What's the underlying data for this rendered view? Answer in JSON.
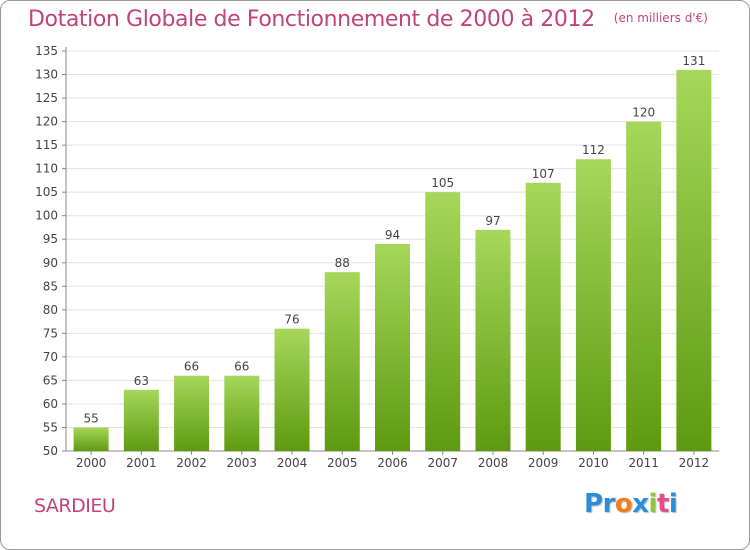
{
  "chart_data": {
    "type": "bar",
    "title": "Dotation Globale de Fonctionnement de 2000 à 2012",
    "unit_note": "(en milliers d'€)",
    "categories": [
      "2000",
      "2001",
      "2002",
      "2003",
      "2004",
      "2005",
      "2006",
      "2007",
      "2008",
      "2009",
      "2010",
      "2011",
      "2012"
    ],
    "values": [
      55,
      63,
      66,
      66,
      76,
      88,
      94,
      105,
      97,
      107,
      112,
      120,
      131
    ],
    "ylim": [
      50,
      135
    ],
    "ytick_step": 5,
    "grid": true,
    "xlabel": "",
    "ylabel": "",
    "colors": {
      "bar_top": "#a6d75a",
      "bar_bottom": "#5e9a10",
      "grid": "#e2e2e2",
      "axis": "#888888",
      "text": "#444444",
      "title": "#c0447a"
    }
  },
  "commune": "SARDIEU",
  "logo": {
    "letters": [
      "P",
      "r",
      "o",
      "x",
      "i",
      "t",
      "i"
    ],
    "colors": [
      "#2a8fd8",
      "#2a8fd8",
      "#f07e1a",
      "#2a8fd8",
      "#8cc63f",
      "#e84b8a",
      "#2a8fd8"
    ]
  }
}
